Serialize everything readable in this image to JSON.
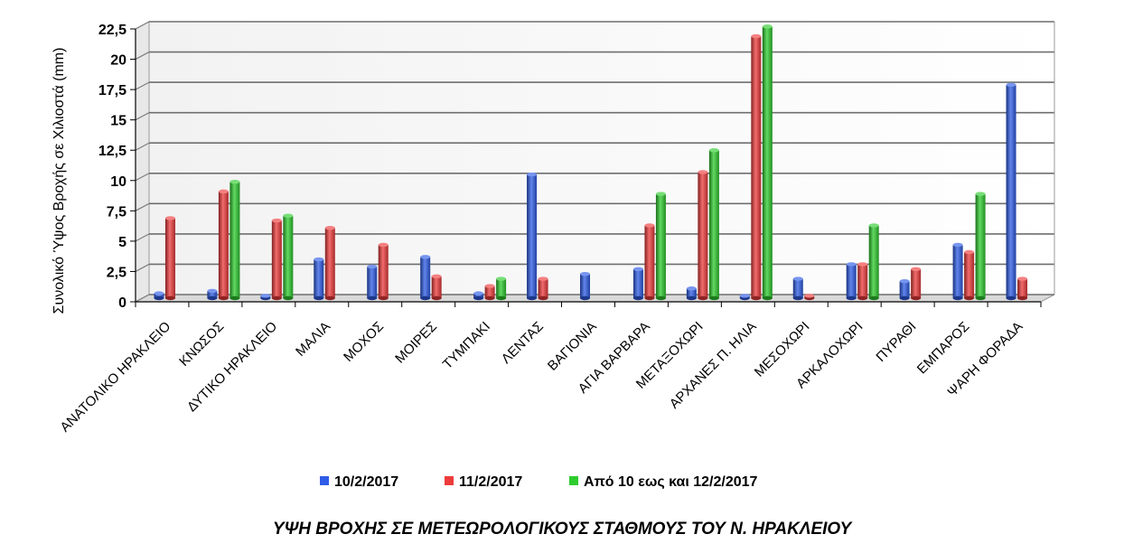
{
  "chart_data": {
    "type": "bar",
    "title": "ΥΨΗ ΒΡΟΧΗΣ ΣΕ ΜΕΤΕΩΡΟΛΟΓΙΚΟΥΣ ΣΤΑΘΜΟΥΣ ΤΟΥ Ν. ΗΡΑΚΛΕΙΟΥ",
    "ylabel": "Συνολικό Ύψος Βροχής σε Χιλιοστά (mm)",
    "xlabel": "",
    "ylim": [
      0,
      22.5
    ],
    "yticks": [
      "0",
      "2,5",
      "5",
      "7,5",
      "10",
      "12,5",
      "15",
      "17,5",
      "20",
      "22,5"
    ],
    "grid": true,
    "legend_position": "bottom",
    "categories": [
      "ΑΝΑΤΟΛΙΚΟ ΗΡΑΚΛΕΙΟ",
      "ΚΝΩΣΟΣ",
      "ΔΥΤΙΚΟ ΗΡΑΚΛΕΙΟ",
      "ΜΑΛΙΑ",
      "ΜΟΧΟΣ",
      "ΜΟΙΡΕΣ",
      "ΤΥΜΠΑΚΙ",
      "ΛΕΝΤΑΣ",
      "ΒΑΓΙΟΝΙΑ",
      "ΑΓΙΑ ΒΑΡΒΑΡΑ",
      "ΜΕΤΑΞΟΧΩΡΙ",
      "ΑΡΧΑΝΕΣ Π. ΗΛΙΑ",
      "ΜΕΣΟΧΩΡΙ",
      "ΑΡΚΑΛΟΧΩΡΙ",
      "ΠΥΡΑΘΙ",
      "ΕΜΠΑΡΟΣ",
      "ΨΑΡΗ ΦΟΡΑΔΑ"
    ],
    "series": [
      {
        "name": "10/2/2017",
        "color": "#2e5ce6",
        "values": [
          0.4,
          0.6,
          0.2,
          3.2,
          2.6,
          3.4,
          0.4,
          10.2,
          2.0,
          2.4,
          0.8,
          0.2,
          1.6,
          2.8,
          1.4,
          4.4,
          17.6
        ]
      },
      {
        "name": "11/2/2017",
        "color": "#ee3b3b",
        "values": [
          6.6,
          8.8,
          6.4,
          5.8,
          4.4,
          1.8,
          1.0,
          1.6,
          0,
          6.0,
          10.4,
          21.6,
          0.2,
          2.8,
          2.4,
          3.8,
          1.6
        ]
      },
      {
        "name": "Από 10 εως και 12/2/2017",
        "color": "#2ecc2e",
        "values": [
          0,
          9.6,
          6.8,
          0,
          0,
          0,
          1.6,
          0,
          0,
          8.6,
          12.2,
          22.4,
          0,
          6.0,
          0,
          8.6,
          0
        ]
      }
    ]
  }
}
